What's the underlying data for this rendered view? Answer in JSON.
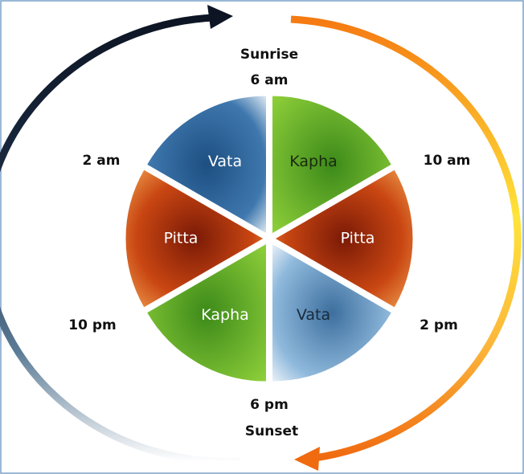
{
  "times": {
    "sunrise": "Sunrise",
    "six_am": "6 am",
    "ten_am": "10 am",
    "two_pm": "2 pm",
    "six_pm": "6 pm",
    "sunset": "Sunset",
    "ten_pm": "10 pm",
    "two_am": "2 am"
  },
  "segments": [
    {
      "label": "Kapha"
    },
    {
      "label": "Pitta"
    },
    {
      "label": "Vata"
    },
    {
      "label": "Kapha"
    },
    {
      "label": "Pitta"
    },
    {
      "label": "Vata"
    }
  ]
}
